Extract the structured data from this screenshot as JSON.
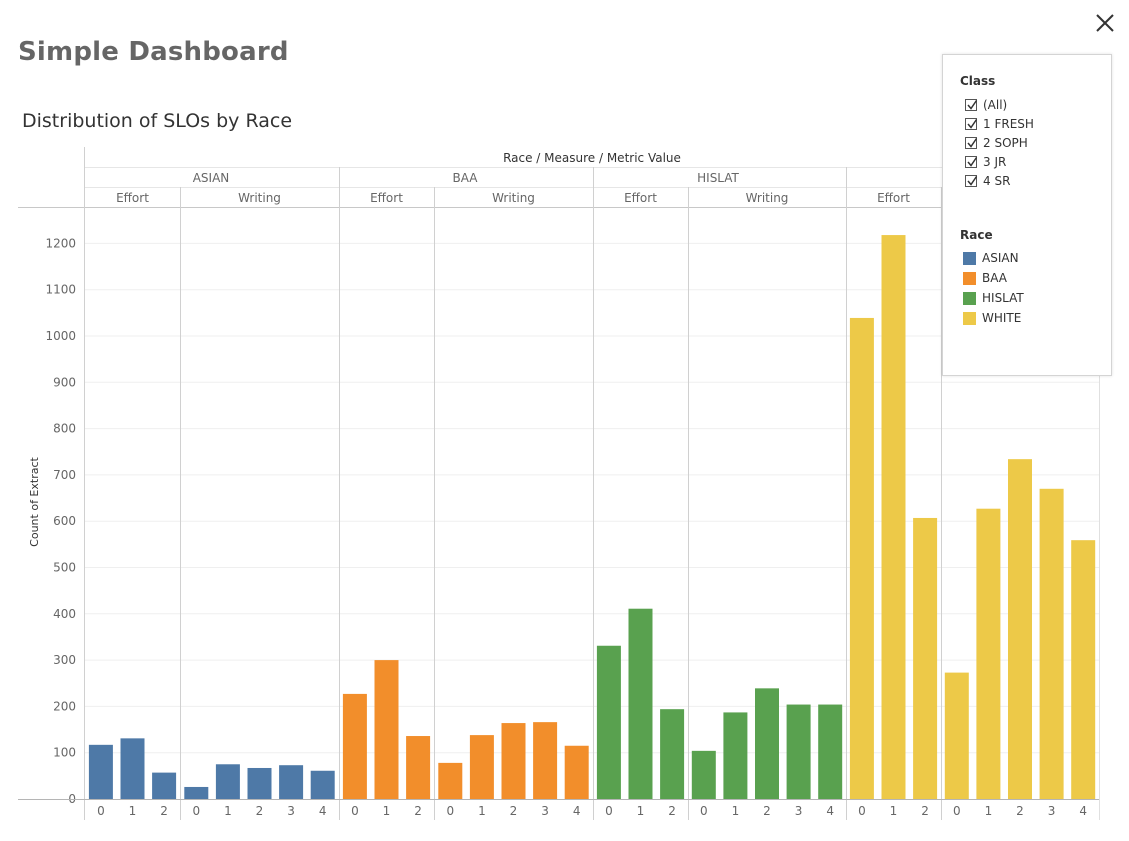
{
  "dashboard": {
    "title": "Simple Dashboard",
    "close_icon": "close-icon"
  },
  "sheet": {
    "title": "Distribution of SLOs by Race"
  },
  "filters": {
    "class_title": "Class",
    "class_items": [
      {
        "label": "(All)",
        "checked": true
      },
      {
        "label": "1 FRESH",
        "checked": true
      },
      {
        "label": "2 SOPH",
        "checked": true
      },
      {
        "label": "3 JR",
        "checked": true
      },
      {
        "label": "4 SR",
        "checked": true
      }
    ],
    "race_title": "Race",
    "race_items": [
      {
        "label": "ASIAN",
        "color": "#4e79a7"
      },
      {
        "label": "BAA",
        "color": "#f28e2b"
      },
      {
        "label": "HISLAT",
        "color": "#59a14f"
      },
      {
        "label": "WHITE",
        "color": "#edc948"
      }
    ]
  },
  "chart_data": {
    "type": "bar",
    "header_title": "Race / Measure / Metric Value",
    "ylabel": "Count of Extract",
    "ylim": [
      0,
      1250
    ],
    "yticks": [
      0,
      100,
      200,
      300,
      400,
      500,
      600,
      700,
      800,
      900,
      1000,
      1100,
      1200
    ],
    "grid": true,
    "panels": [
      {
        "race": "ASIAN",
        "race_label": "ASIAN",
        "measure": "Effort",
        "color": "#4e79a7",
        "categories": [
          "0",
          "1",
          "2"
        ],
        "values": [
          117,
          131,
          57
        ]
      },
      {
        "race": "ASIAN",
        "race_label": "",
        "measure": "Writing",
        "color": "#4e79a7",
        "categories": [
          "0",
          "1",
          "2",
          "3",
          "4"
        ],
        "values": [
          26,
          75,
          67,
          73,
          61
        ]
      },
      {
        "race": "BAA",
        "race_label": "BAA",
        "measure": "Effort",
        "color": "#f28e2b",
        "categories": [
          "0",
          "1",
          "2"
        ],
        "values": [
          227,
          300,
          136
        ]
      },
      {
        "race": "BAA",
        "race_label": "",
        "measure": "Writing",
        "color": "#f28e2b",
        "categories": [
          "0",
          "1",
          "2",
          "3",
          "4"
        ],
        "values": [
          78,
          138,
          164,
          166,
          115
        ]
      },
      {
        "race": "HISLAT",
        "race_label": "HISLAT",
        "measure": "Effort",
        "color": "#59a14f",
        "categories": [
          "0",
          "1",
          "2"
        ],
        "values": [
          331,
          411,
          194
        ]
      },
      {
        "race": "HISLAT",
        "race_label": "",
        "measure": "Writing",
        "color": "#59a14f",
        "categories": [
          "0",
          "1",
          "2",
          "3",
          "4"
        ],
        "values": [
          104,
          187,
          239,
          204,
          204
        ]
      },
      {
        "race": "WHITE",
        "race_label": "",
        "measure": "Effort",
        "color": "#edc948",
        "categories": [
          "0",
          "1",
          "2"
        ],
        "values": [
          1039,
          1218,
          607
        ]
      },
      {
        "race": "WHITE",
        "race_label": "",
        "measure": "",
        "color": "#edc948",
        "categories": [
          "0",
          "1",
          "2",
          "3",
          "4"
        ],
        "values": [
          273,
          627,
          734,
          670,
          559
        ]
      }
    ]
  }
}
